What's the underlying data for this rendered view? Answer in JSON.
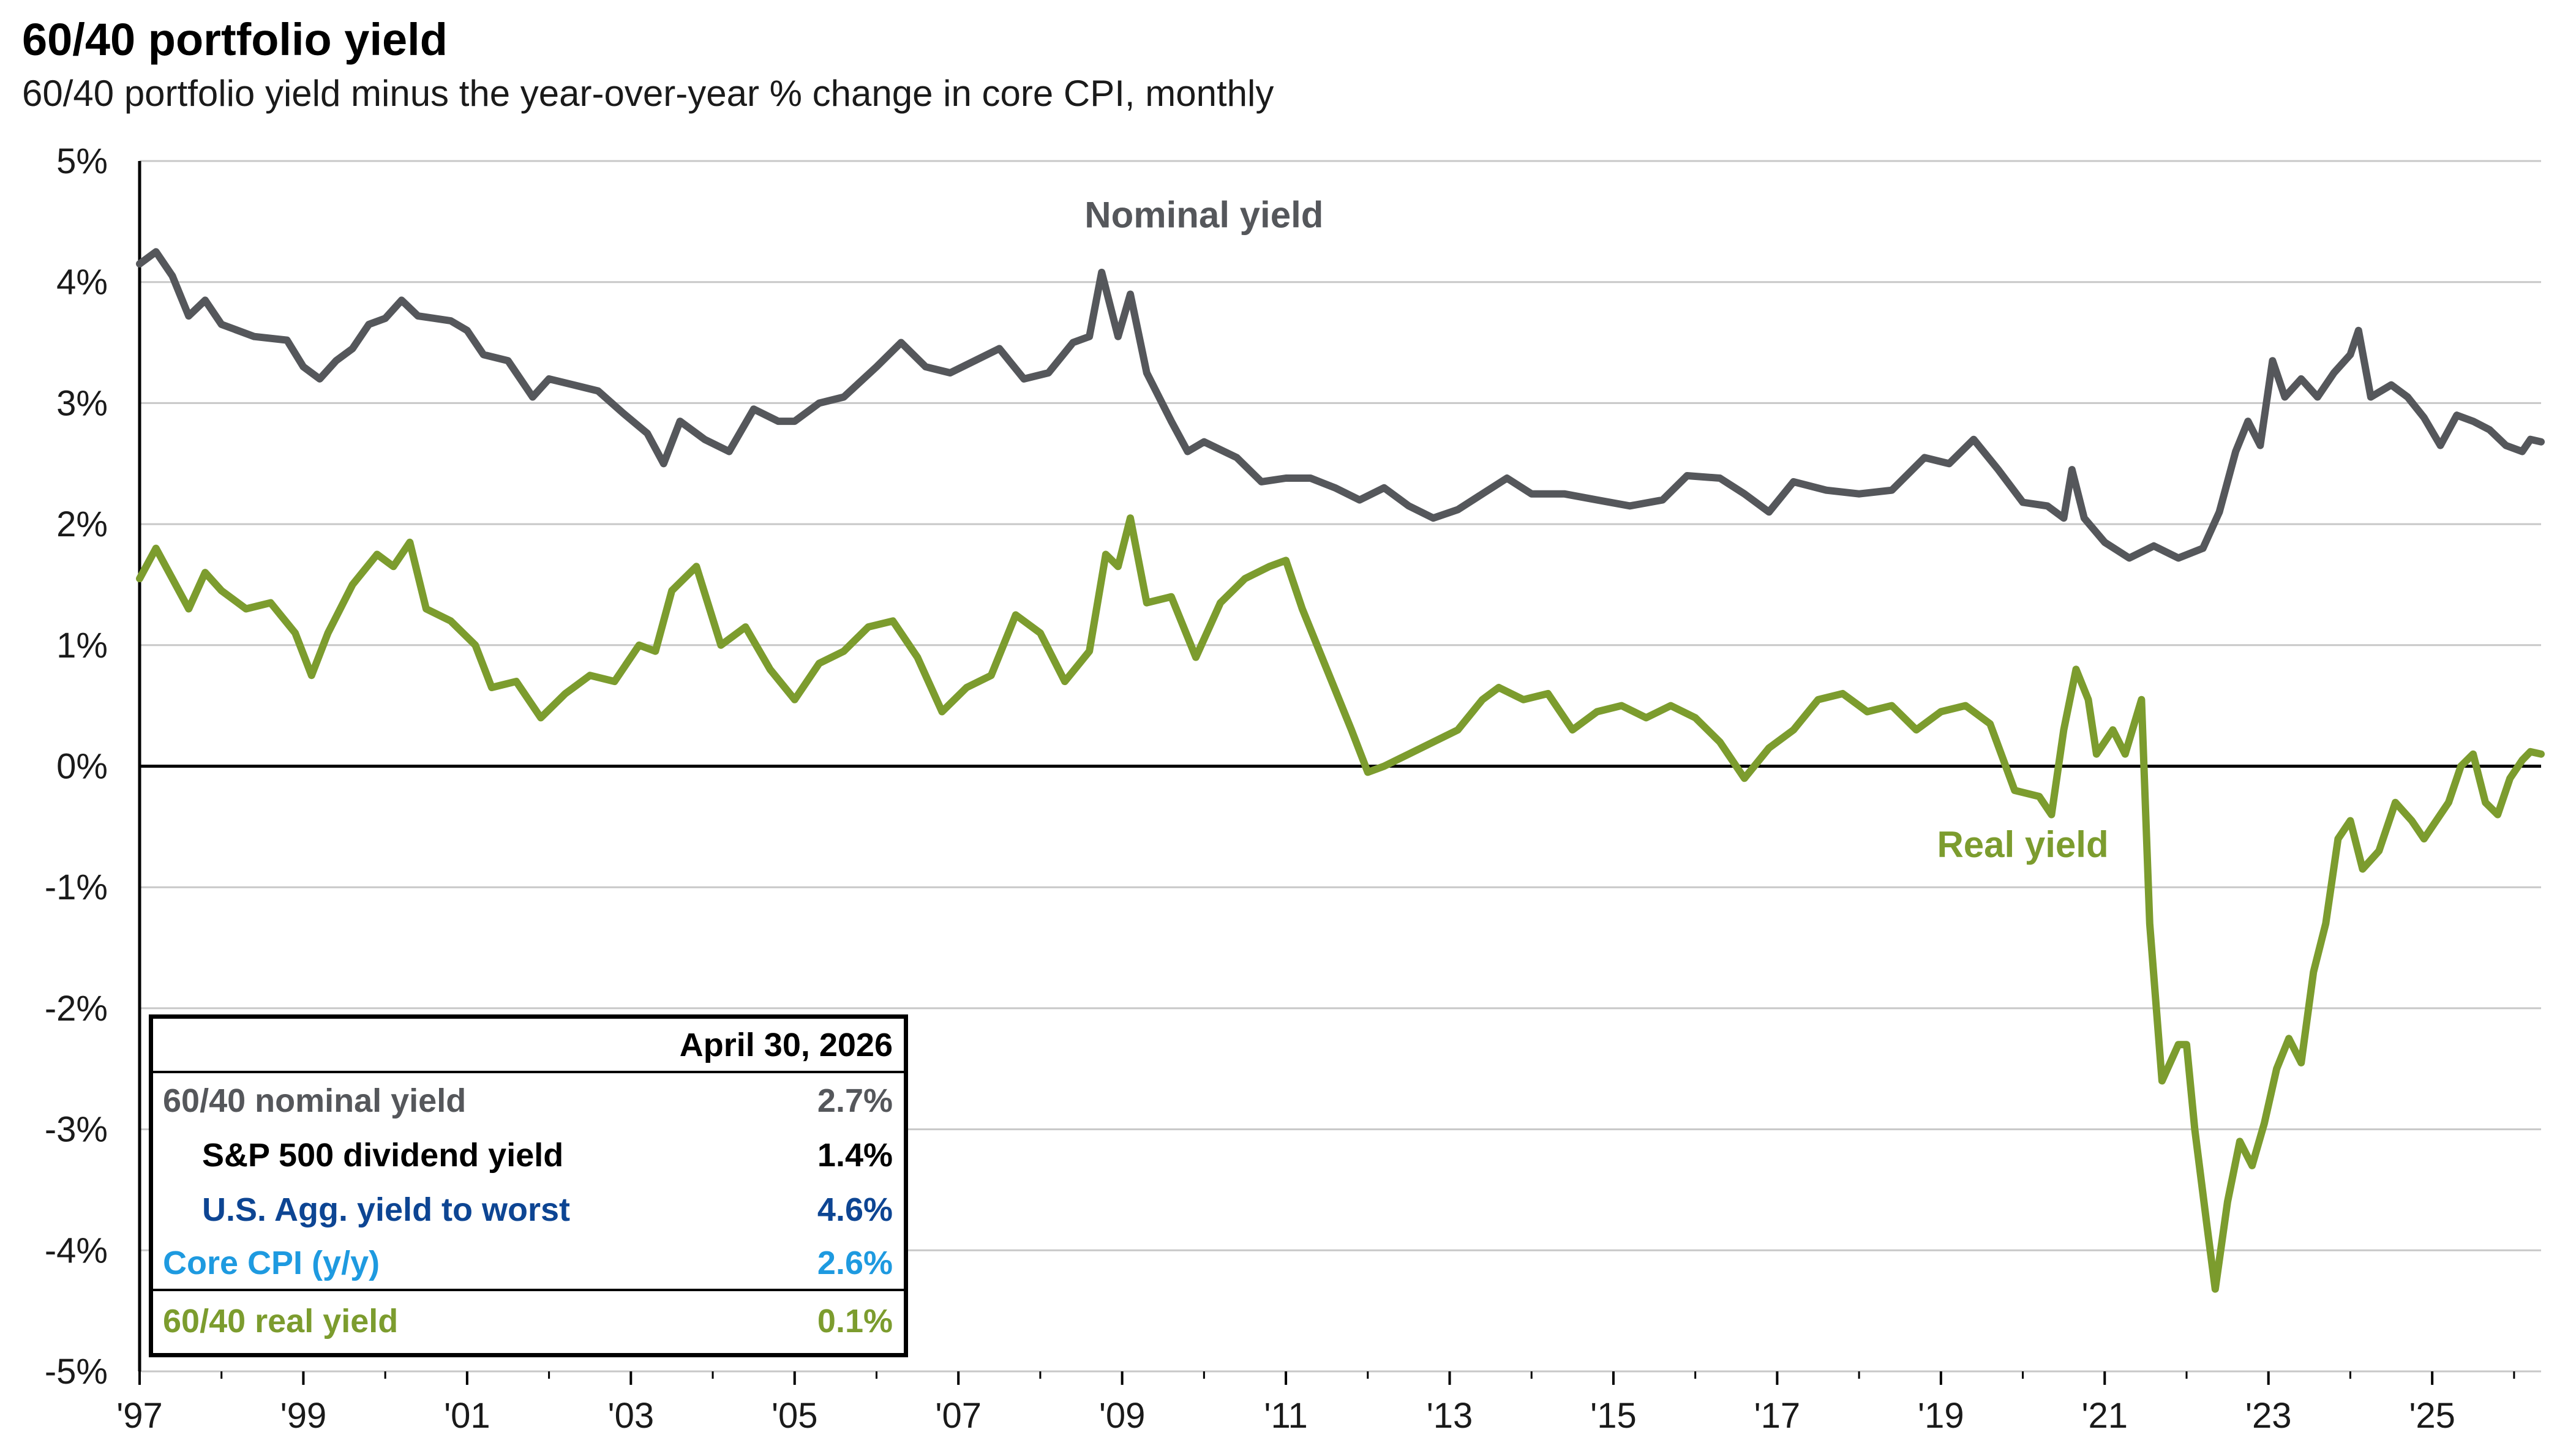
{
  "title": "60/40 portfolio yield",
  "subtitle": "60/40 portfolio yield minus the year-over-year % change in core CPI, monthly",
  "colors": {
    "nominal": "#55575b",
    "real": "#7c9c2e",
    "agg": "#0d4593",
    "cpi": "#1e9ae0",
    "grid": "#c8c8c8",
    "axis": "#000000"
  },
  "chart_data": {
    "type": "line",
    "x_start": "1997-01",
    "x_end": "2026-04",
    "xlim": [
      1997.0,
      2026.33
    ],
    "ylim": [
      -5,
      5
    ],
    "y_ticks": [
      5,
      4,
      3,
      2,
      1,
      0,
      -1,
      -2,
      -3,
      -4,
      -5
    ],
    "y_tick_labels": [
      "5%",
      "4%",
      "3%",
      "2%",
      "1%",
      "0%",
      "-1%",
      "-2%",
      "-3%",
      "-4%",
      "-5%"
    ],
    "x_ticks": [
      1997,
      1999,
      2001,
      2003,
      2005,
      2007,
      2009,
      2011,
      2013,
      2015,
      2017,
      2019,
      2021,
      2023,
      2025
    ],
    "x_tick_labels": [
      "'97",
      "'99",
      "'01",
      "'03",
      "'05",
      "'07",
      "'09",
      "'11",
      "'13",
      "'15",
      "'17",
      "'19",
      "'21",
      "'23",
      "'25"
    ],
    "grid": true,
    "series": [
      {
        "name": "Nominal yield",
        "color": "#55575b",
        "points": [
          [
            1997.0,
            4.15
          ],
          [
            1997.2,
            4.25
          ],
          [
            1997.4,
            4.05
          ],
          [
            1997.6,
            3.72
          ],
          [
            1997.8,
            3.85
          ],
          [
            1998.0,
            3.65
          ],
          [
            1998.4,
            3.55
          ],
          [
            1998.8,
            3.52
          ],
          [
            1999.0,
            3.3
          ],
          [
            1999.2,
            3.2
          ],
          [
            1999.4,
            3.35
          ],
          [
            1999.6,
            3.45
          ],
          [
            1999.8,
            3.65
          ],
          [
            2000.0,
            3.7
          ],
          [
            2000.2,
            3.85
          ],
          [
            2000.4,
            3.72
          ],
          [
            2000.6,
            3.7
          ],
          [
            2000.8,
            3.68
          ],
          [
            2001.0,
            3.6
          ],
          [
            2001.2,
            3.4
          ],
          [
            2001.5,
            3.35
          ],
          [
            2001.8,
            3.05
          ],
          [
            2002.0,
            3.2
          ],
          [
            2002.3,
            3.15
          ],
          [
            2002.6,
            3.1
          ],
          [
            2002.9,
            2.92
          ],
          [
            2003.2,
            2.75
          ],
          [
            2003.4,
            2.5
          ],
          [
            2003.6,
            2.85
          ],
          [
            2003.9,
            2.7
          ],
          [
            2004.2,
            2.6
          ],
          [
            2004.5,
            2.95
          ],
          [
            2004.8,
            2.85
          ],
          [
            2005.0,
            2.85
          ],
          [
            2005.3,
            3.0
          ],
          [
            2005.6,
            3.05
          ],
          [
            2006.0,
            3.3
          ],
          [
            2006.3,
            3.5
          ],
          [
            2006.6,
            3.3
          ],
          [
            2006.9,
            3.25
          ],
          [
            2007.2,
            3.35
          ],
          [
            2007.5,
            3.45
          ],
          [
            2007.8,
            3.2
          ],
          [
            2008.1,
            3.25
          ],
          [
            2008.4,
            3.5
          ],
          [
            2008.6,
            3.55
          ],
          [
            2008.75,
            4.08
          ],
          [
            2008.95,
            3.55
          ],
          [
            2009.1,
            3.9
          ],
          [
            2009.3,
            3.25
          ],
          [
            2009.6,
            2.85
          ],
          [
            2009.8,
            2.6
          ],
          [
            2010.0,
            2.68
          ],
          [
            2010.4,
            2.55
          ],
          [
            2010.7,
            2.35
          ],
          [
            2011.0,
            2.38
          ],
          [
            2011.3,
            2.38
          ],
          [
            2011.6,
            2.3
          ],
          [
            2011.9,
            2.2
          ],
          [
            2012.2,
            2.3
          ],
          [
            2012.5,
            2.15
          ],
          [
            2012.8,
            2.05
          ],
          [
            2013.1,
            2.12
          ],
          [
            2013.4,
            2.25
          ],
          [
            2013.7,
            2.38
          ],
          [
            2014.0,
            2.25
          ],
          [
            2014.4,
            2.25
          ],
          [
            2014.8,
            2.2
          ],
          [
            2015.2,
            2.15
          ],
          [
            2015.6,
            2.2
          ],
          [
            2015.9,
            2.4
          ],
          [
            2016.3,
            2.38
          ],
          [
            2016.6,
            2.25
          ],
          [
            2016.9,
            2.1
          ],
          [
            2017.2,
            2.35
          ],
          [
            2017.6,
            2.28
          ],
          [
            2018.0,
            2.25
          ],
          [
            2018.4,
            2.28
          ],
          [
            2018.8,
            2.55
          ],
          [
            2019.1,
            2.5
          ],
          [
            2019.4,
            2.7
          ],
          [
            2019.7,
            2.45
          ],
          [
            2020.0,
            2.18
          ],
          [
            2020.3,
            2.15
          ],
          [
            2020.5,
            2.05
          ],
          [
            2020.6,
            2.45
          ],
          [
            2020.75,
            2.05
          ],
          [
            2021.0,
            1.85
          ],
          [
            2021.3,
            1.72
          ],
          [
            2021.6,
            1.82
          ],
          [
            2021.9,
            1.72
          ],
          [
            2022.2,
            1.8
          ],
          [
            2022.4,
            2.1
          ],
          [
            2022.6,
            2.6
          ],
          [
            2022.75,
            2.85
          ],
          [
            2022.9,
            2.65
          ],
          [
            2023.05,
            3.35
          ],
          [
            2023.2,
            3.05
          ],
          [
            2023.4,
            3.2
          ],
          [
            2023.6,
            3.05
          ],
          [
            2023.8,
            3.25
          ],
          [
            2024.0,
            3.4
          ],
          [
            2024.1,
            3.6
          ],
          [
            2024.25,
            3.05
          ],
          [
            2024.5,
            3.15
          ],
          [
            2024.7,
            3.05
          ],
          [
            2024.9,
            2.88
          ],
          [
            2025.1,
            2.65
          ],
          [
            2025.3,
            2.9
          ],
          [
            2025.5,
            2.85
          ],
          [
            2025.7,
            2.78
          ],
          [
            2025.9,
            2.65
          ],
          [
            2026.1,
            2.6
          ],
          [
            2026.2,
            2.7
          ],
          [
            2026.33,
            2.68
          ]
        ]
      },
      {
        "name": "Real yield",
        "color": "#7c9c2e",
        "points": [
          [
            1997.0,
            1.55
          ],
          [
            1997.2,
            1.8
          ],
          [
            1997.4,
            1.55
          ],
          [
            1997.6,
            1.3
          ],
          [
            1997.8,
            1.6
          ],
          [
            1998.0,
            1.45
          ],
          [
            1998.3,
            1.3
          ],
          [
            1998.6,
            1.35
          ],
          [
            1998.9,
            1.1
          ],
          [
            1999.1,
            0.75
          ],
          [
            1999.3,
            1.1
          ],
          [
            1999.6,
            1.5
          ],
          [
            1999.9,
            1.75
          ],
          [
            2000.1,
            1.65
          ],
          [
            2000.3,
            1.85
          ],
          [
            2000.5,
            1.3
          ],
          [
            2000.8,
            1.2
          ],
          [
            2001.1,
            1.0
          ],
          [
            2001.3,
            0.65
          ],
          [
            2001.6,
            0.7
          ],
          [
            2001.9,
            0.4
          ],
          [
            2002.2,
            0.6
          ],
          [
            2002.5,
            0.75
          ],
          [
            2002.8,
            0.7
          ],
          [
            2003.1,
            1.0
          ],
          [
            2003.3,
            0.95
          ],
          [
            2003.5,
            1.45
          ],
          [
            2003.8,
            1.65
          ],
          [
            2004.1,
            1.0
          ],
          [
            2004.4,
            1.15
          ],
          [
            2004.7,
            0.8
          ],
          [
            2005.0,
            0.55
          ],
          [
            2005.3,
            0.85
          ],
          [
            2005.6,
            0.95
          ],
          [
            2005.9,
            1.15
          ],
          [
            2006.2,
            1.2
          ],
          [
            2006.5,
            0.9
          ],
          [
            2006.8,
            0.45
          ],
          [
            2007.1,
            0.65
          ],
          [
            2007.4,
            0.75
          ],
          [
            2007.7,
            1.25
          ],
          [
            2008.0,
            1.1
          ],
          [
            2008.3,
            0.7
          ],
          [
            2008.6,
            0.95
          ],
          [
            2008.8,
            1.75
          ],
          [
            2008.95,
            1.65
          ],
          [
            2009.1,
            2.05
          ],
          [
            2009.3,
            1.35
          ],
          [
            2009.6,
            1.4
          ],
          [
            2009.9,
            0.9
          ],
          [
            2010.2,
            1.35
          ],
          [
            2010.5,
            1.55
          ],
          [
            2010.8,
            1.65
          ],
          [
            2011.0,
            1.7
          ],
          [
            2011.2,
            1.3
          ],
          [
            2011.5,
            0.8
          ],
          [
            2011.8,
            0.3
          ],
          [
            2012.0,
            -0.05
          ],
          [
            2012.2,
            0.0
          ],
          [
            2012.5,
            0.1
          ],
          [
            2012.8,
            0.2
          ],
          [
            2013.1,
            0.3
          ],
          [
            2013.4,
            0.55
          ],
          [
            2013.6,
            0.65
          ],
          [
            2013.9,
            0.55
          ],
          [
            2014.2,
            0.6
          ],
          [
            2014.5,
            0.3
          ],
          [
            2014.8,
            0.45
          ],
          [
            2015.1,
            0.5
          ],
          [
            2015.4,
            0.4
          ],
          [
            2015.7,
            0.5
          ],
          [
            2016.0,
            0.4
          ],
          [
            2016.3,
            0.2
          ],
          [
            2016.6,
            -0.1
          ],
          [
            2016.9,
            0.15
          ],
          [
            2017.2,
            0.3
          ],
          [
            2017.5,
            0.55
          ],
          [
            2017.8,
            0.6
          ],
          [
            2018.1,
            0.45
          ],
          [
            2018.4,
            0.5
          ],
          [
            2018.7,
            0.3
          ],
          [
            2019.0,
            0.45
          ],
          [
            2019.3,
            0.5
          ],
          [
            2019.6,
            0.35
          ],
          [
            2019.9,
            -0.2
          ],
          [
            2020.2,
            -0.25
          ],
          [
            2020.35,
            -0.4
          ],
          [
            2020.5,
            0.3
          ],
          [
            2020.65,
            0.8
          ],
          [
            2020.8,
            0.55
          ],
          [
            2020.9,
            0.1
          ],
          [
            2021.1,
            0.3
          ],
          [
            2021.25,
            0.1
          ],
          [
            2021.45,
            0.55
          ],
          [
            2021.55,
            -1.3
          ],
          [
            2021.7,
            -2.6
          ],
          [
            2021.9,
            -2.3
          ],
          [
            2022.0,
            -2.3
          ],
          [
            2022.1,
            -3.0
          ],
          [
            2022.25,
            -3.8
          ],
          [
            2022.35,
            -4.32
          ],
          [
            2022.5,
            -3.6
          ],
          [
            2022.65,
            -3.1
          ],
          [
            2022.8,
            -3.3
          ],
          [
            2022.95,
            -2.95
          ],
          [
            2023.1,
            -2.5
          ],
          [
            2023.25,
            -2.25
          ],
          [
            2023.4,
            -2.45
          ],
          [
            2023.55,
            -1.7
          ],
          [
            2023.7,
            -1.3
          ],
          [
            2023.85,
            -0.6
          ],
          [
            2024.0,
            -0.45
          ],
          [
            2024.15,
            -0.85
          ],
          [
            2024.35,
            -0.7
          ],
          [
            2024.55,
            -0.3
          ],
          [
            2024.75,
            -0.45
          ],
          [
            2024.9,
            -0.6
          ],
          [
            2025.05,
            -0.45
          ],
          [
            2025.2,
            -0.3
          ],
          [
            2025.35,
            0.0
          ],
          [
            2025.5,
            0.1
          ],
          [
            2025.65,
            -0.3
          ],
          [
            2025.8,
            -0.4
          ],
          [
            2025.95,
            -0.1
          ],
          [
            2026.1,
            0.05
          ],
          [
            2026.2,
            0.12
          ],
          [
            2026.33,
            0.1
          ]
        ]
      }
    ],
    "annotations": [
      {
        "text": "Nominal yield",
        "x": 2010.0,
        "y": 4.45,
        "color": "#55575b"
      },
      {
        "text": "Real yield",
        "x": 2020.0,
        "y": -0.75,
        "color": "#7c9c2e"
      }
    ]
  },
  "legend_table": {
    "header": "April 30, 2026",
    "rows": [
      {
        "label": "60/40 nominal yield",
        "value": "2.7%",
        "color": "#55575b",
        "indent": false
      },
      {
        "label": "S&P 500 dividend yield",
        "value": "1.4%",
        "color": "#000000",
        "indent": true
      },
      {
        "label": "U.S. Agg. yield to worst",
        "value": "4.6%",
        "color": "#0d4593",
        "indent": true
      },
      {
        "label": "Core CPI (y/y)",
        "value": "2.6%",
        "color": "#1e9ae0",
        "indent": false
      },
      {
        "label": "60/40 real yield",
        "value": "0.1%",
        "color": "#7c9c2e",
        "indent": false
      }
    ]
  }
}
